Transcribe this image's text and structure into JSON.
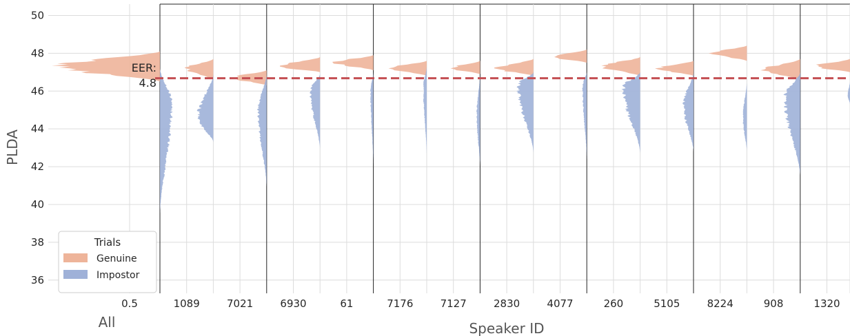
{
  "chart_data": {
    "type": "violin",
    "ylabel": "PLDA",
    "xlabel": "Speaker ID",
    "ylim": [
      35.3,
      50.6
    ],
    "yticks": [
      36,
      38,
      40,
      42,
      44,
      46,
      48,
      50
    ],
    "grid": true,
    "all_group": {
      "label": "All",
      "tick_label": "0.5",
      "eer_label_line1": "EER:",
      "eer_label_line2": "4.8"
    },
    "threshold": 46.68,
    "categories": [
      "1089",
      "7021",
      "6930",
      "61",
      "7176",
      "7127",
      "2830",
      "4077",
      "260",
      "5105",
      "8224",
      "908",
      "1320"
    ],
    "series": [
      {
        "name": "Genuine",
        "color": "#eeb49a",
        "all": {
          "min": 46.5,
          "peak": 47.3,
          "max": 48.1,
          "width": 1.0
        },
        "values": [
          {
            "min": 46.6,
            "peak": 47.2,
            "max": 47.7,
            "width": 0.7
          },
          {
            "min": 46.3,
            "peak": 46.7,
            "max": 47.1,
            "width": 0.85
          },
          {
            "min": 47.0,
            "peak": 47.3,
            "max": 47.8,
            "width": 1.0
          },
          {
            "min": 47.1,
            "peak": 47.5,
            "max": 47.9,
            "width": 1.0
          },
          {
            "min": 46.8,
            "peak": 47.2,
            "max": 47.6,
            "width": 0.9
          },
          {
            "min": 46.9,
            "peak": 47.2,
            "max": 47.6,
            "width": 0.75
          },
          {
            "min": 46.8,
            "peak": 47.2,
            "max": 47.7,
            "width": 0.95
          },
          {
            "min": 47.5,
            "peak": 47.8,
            "max": 48.2,
            "width": 0.85
          },
          {
            "min": 46.8,
            "peak": 47.3,
            "max": 47.8,
            "width": 0.95
          },
          {
            "min": 46.8,
            "peak": 47.2,
            "max": 47.6,
            "width": 0.9
          },
          {
            "min": 47.6,
            "peak": 48.0,
            "max": 48.4,
            "width": 0.9
          },
          {
            "min": 46.6,
            "peak": 47.1,
            "max": 47.7,
            "width": 0.95
          },
          {
            "min": 47.0,
            "peak": 47.3,
            "max": 47.7,
            "width": 0.9
          }
        ]
      },
      {
        "name": "Impostor",
        "color": "#9fb1d8",
        "all": {
          "min": 39.5,
          "peak": 45.3,
          "max": 47.2,
          "width": 0.55
        },
        "values": [
          {
            "min": 43.3,
            "peak": 44.6,
            "max": 46.9,
            "width": 0.55
          },
          {
            "min": 40.9,
            "peak": 45.0,
            "max": 46.9,
            "width": 0.3
          },
          {
            "min": 42.9,
            "peak": 46.0,
            "max": 46.9,
            "width": 0.35
          },
          {
            "min": 42.0,
            "peak": 46.0,
            "max": 47.0,
            "width": 0.1
          },
          {
            "min": 42.6,
            "peak": 46.2,
            "max": 47.3,
            "width": 0.12
          },
          {
            "min": 42.0,
            "peak": 44.7,
            "max": 46.9,
            "width": 0.12
          },
          {
            "min": 42.7,
            "peak": 46.3,
            "max": 47.0,
            "width": 0.55
          },
          {
            "min": 42.3,
            "peak": 46.3,
            "max": 47.0,
            "width": 0.15
          },
          {
            "min": 42.7,
            "peak": 46.2,
            "max": 47.0,
            "width": 0.6
          },
          {
            "min": 42.8,
            "peak": 45.3,
            "max": 47.0,
            "width": 0.35
          },
          {
            "min": 42.8,
            "peak": 44.6,
            "max": 46.5,
            "width": 0.14
          },
          {
            "min": 41.5,
            "peak": 45.7,
            "max": 47.0,
            "width": 0.55
          },
          {
            "min": 45.3,
            "peak": 45.8,
            "max": 46.5,
            "width": 0.08
          }
        ]
      }
    ],
    "legend": {
      "title": "Trials",
      "placement": "lower-left",
      "entries": [
        "Genuine",
        "Impostor"
      ]
    },
    "threshold_color": "#c44e52",
    "grid_color": "#dcdcdc"
  }
}
